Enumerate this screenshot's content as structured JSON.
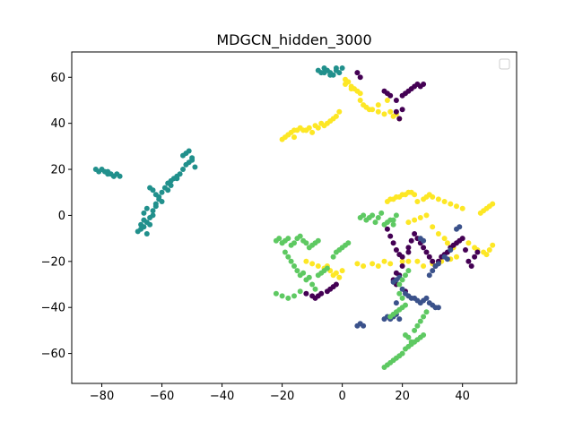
{
  "chart_data": {
    "type": "scatter",
    "title": "MDGCN_hidden_3000",
    "xlabel": "",
    "ylabel": "",
    "xlim": [
      -90,
      58
    ],
    "ylim": [
      -73,
      71
    ],
    "xticks": [
      -80,
      -60,
      -40,
      -20,
      0,
      20,
      40
    ],
    "yticks": [
      -60,
      -40,
      -20,
      0,
      20,
      40,
      60
    ],
    "xtick_labels": [
      "−80",
      "−60",
      "−40",
      "−20",
      "0",
      "20",
      "40"
    ],
    "ytick_labels": [
      "−60",
      "−40",
      "−20",
      "0",
      "20",
      "40",
      "60"
    ],
    "grid": false,
    "legend": {
      "placement": "top-right",
      "entries": []
    },
    "colors": {
      "dark_purple": "#440154",
      "dark_blue": "#3b528b",
      "teal": "#21908c",
      "green": "#5ec962",
      "yellow": "#fde725"
    },
    "series": [
      {
        "color_key": "teal",
        "x": [
          -82,
          -81,
          -80,
          -79,
          -78,
          -77,
          -76,
          -75,
          -74,
          -78,
          -76,
          -68,
          -67,
          -66,
          -65,
          -64,
          -63,
          -62,
          -61,
          -65,
          -64,
          -63,
          -67,
          -66,
          -62,
          -60,
          -59,
          -58,
          -57,
          -56,
          -55,
          -54,
          -53,
          -52,
          -51,
          -50,
          -49,
          -53,
          -52,
          -51,
          -50,
          -64,
          -63,
          -62,
          -61,
          -60,
          -66,
          -65,
          -57,
          -58,
          -55,
          -8,
          -7,
          -6,
          -5,
          -4,
          -3,
          -2,
          -1,
          0,
          -6,
          -4,
          -2
        ],
        "y": [
          20,
          19,
          20,
          19,
          18,
          18,
          17,
          18,
          17,
          19,
          17,
          -7,
          -6,
          -5,
          -3,
          -1,
          2,
          5,
          8,
          -8,
          -4,
          0,
          -4,
          -2,
          4,
          10,
          12,
          14,
          15,
          16,
          17,
          18,
          20,
          22,
          23,
          24,
          21,
          26,
          27,
          28,
          25,
          12,
          11,
          9,
          7,
          6,
          1,
          3,
          13,
          11,
          16,
          63,
          62,
          64,
          63,
          62,
          61,
          63,
          62,
          64,
          62,
          61,
          64
        ]
      },
      {
        "color_key": "yellow",
        "x": [
          -20,
          -19,
          -18,
          -17,
          -16,
          -15,
          -14,
          -13,
          -12,
          -11,
          -10,
          -9,
          -8,
          -7,
          -6,
          -5,
          -4,
          -3,
          -2,
          -1,
          1,
          2,
          3,
          4,
          5,
          6,
          7,
          8,
          10,
          12,
          14,
          16,
          18,
          19,
          -18,
          -16,
          -12,
          1,
          3,
          6,
          9,
          12,
          15,
          17,
          15,
          16,
          17,
          18,
          19,
          20,
          21,
          22,
          23,
          24,
          25,
          27,
          28,
          29,
          30,
          32,
          34,
          36,
          38,
          40,
          46,
          47,
          48,
          49,
          50,
          22,
          24,
          26,
          28,
          30,
          32,
          34,
          35,
          37,
          42,
          44,
          45,
          47,
          48,
          49,
          50,
          38,
          36,
          33,
          30,
          27,
          25,
          -12,
          -10,
          -8,
          -6,
          -5,
          -4,
          -3,
          -2,
          -1,
          0,
          5,
          7,
          10,
          12,
          14,
          16,
          20,
          22
        ],
        "y": [
          33,
          34,
          35,
          36,
          37,
          37,
          38,
          37,
          37,
          38,
          36,
          39,
          38,
          40,
          39,
          40,
          41,
          42,
          43,
          45,
          57,
          58,
          56,
          55,
          54,
          53,
          48,
          47,
          46,
          45,
          44,
          45,
          44,
          42,
          35,
          34,
          37,
          59,
          55,
          50,
          46,
          48,
          50,
          43,
          6,
          7,
          7,
          8,
          8,
          9,
          9,
          10,
          10,
          9,
          6,
          7,
          8,
          9,
          8,
          7,
          6,
          5,
          4,
          3,
          1,
          2,
          3,
          4,
          5,
          -3,
          -2,
          -1,
          0,
          -5,
          -8,
          -10,
          -12,
          -14,
          -12,
          -14,
          -15,
          -16,
          -17,
          -15,
          -13,
          -18,
          -19,
          -20,
          -21,
          -22,
          -20,
          -20,
          -21,
          -22,
          -23,
          -22,
          -24,
          -26,
          -25,
          -27,
          -24,
          -21,
          -22,
          -21,
          -22,
          -20,
          -21,
          -20,
          -20
        ]
      },
      {
        "color_key": "dark_purple",
        "x": [
          5,
          6,
          14,
          15,
          16,
          18,
          20,
          21,
          22,
          23,
          24,
          25,
          26,
          27,
          20,
          19,
          18,
          15,
          16,
          17,
          18,
          19,
          20,
          20,
          19,
          18,
          21,
          22,
          23,
          24,
          25,
          26,
          27,
          28,
          29,
          30,
          31,
          32,
          33,
          34,
          35,
          36,
          37,
          38,
          39,
          40,
          41,
          42,
          43,
          44,
          45,
          -12,
          -10,
          -9,
          -8,
          -7,
          -5,
          -4,
          -3,
          -2,
          22,
          17,
          18
        ],
        "y": [
          62,
          60,
          54,
          53,
          52,
          50,
          52,
          53,
          54,
          55,
          56,
          57,
          56,
          57,
          46,
          42,
          45,
          -6,
          -9,
          -12,
          -15,
          -17,
          -18,
          -22,
          -26,
          -30,
          -33,
          -14,
          -11,
          -8,
          -10,
          -12,
          -14,
          -16,
          -18,
          -20,
          -22,
          -20,
          -18,
          -17,
          -16,
          -14,
          -13,
          -12,
          -11,
          -10,
          -15,
          -20,
          -22,
          -18,
          -16,
          -34,
          -35,
          -36,
          -35,
          -34,
          -33,
          -32,
          -31,
          -30,
          -16,
          -28,
          -25
        ]
      },
      {
        "color_key": "dark_blue",
        "x": [
          5,
          6,
          7,
          14,
          15,
          16,
          17,
          18,
          19,
          17,
          18,
          19,
          20,
          21,
          22,
          23,
          24,
          25,
          26,
          27,
          28,
          29,
          30,
          31,
          32,
          29,
          30,
          31,
          32,
          34,
          35,
          26,
          27,
          38,
          39,
          36,
          18
        ],
        "y": [
          -48,
          -47,
          -48,
          -45,
          -44,
          -45,
          -44,
          -43,
          -45,
          -29,
          -28,
          -27,
          -32,
          -34,
          -35,
          -36,
          -36,
          -37,
          -38,
          -37,
          -36,
          -38,
          -39,
          -40,
          -40,
          -26,
          -24,
          -22,
          -21,
          -18,
          -19,
          -10,
          -11,
          -6,
          -5,
          -15,
          -38
        ]
      },
      {
        "color_key": "green",
        "x": [
          -22,
          -21,
          -20,
          -19,
          -18,
          -17,
          -16,
          -15,
          -14,
          -13,
          -12,
          -11,
          -10,
          -9,
          -8,
          -22,
          -20,
          -18,
          -16,
          -14,
          -20,
          -19,
          -18,
          -17,
          -16,
          -15,
          -14,
          -13,
          -12,
          -11,
          -10,
          -9,
          -8,
          -7,
          -6,
          -5,
          6,
          7,
          8,
          9,
          10,
          11,
          12,
          13,
          14,
          15,
          16,
          17,
          14,
          15,
          16,
          17,
          18,
          19,
          20,
          21,
          22,
          23,
          24,
          25,
          26,
          27,
          24,
          25,
          26,
          27,
          28,
          21,
          22,
          23,
          16,
          17,
          18,
          19,
          20,
          21,
          20,
          19,
          19,
          20,
          21,
          22,
          -3,
          -2,
          -1,
          0,
          1,
          2,
          17,
          18
        ],
        "y": [
          -11,
          -10,
          -12,
          -11,
          -10,
          -13,
          -12,
          -10,
          -9,
          -11,
          -12,
          -14,
          -13,
          -12,
          -11,
          -34,
          -35,
          -36,
          -35,
          -33,
          -12,
          -16,
          -18,
          -20,
          -22,
          -24,
          -26,
          -25,
          -28,
          -27,
          -30,
          -32,
          -26,
          -25,
          -24,
          -23,
          -1,
          0,
          -2,
          -1,
          0,
          -3,
          -1,
          1,
          -4,
          -3,
          -2,
          -4,
          -66,
          -65,
          -64,
          -63,
          -62,
          -61,
          -60,
          -58,
          -57,
          -56,
          -55,
          -54,
          -53,
          -52,
          -50,
          -48,
          -46,
          -44,
          -42,
          -52,
          -53,
          -55,
          -44,
          -43,
          -42,
          -41,
          -40,
          -39,
          -36,
          -34,
          -30,
          -28,
          -26,
          -24,
          -18,
          -16,
          -15,
          -14,
          -13,
          -12,
          -2,
          0
        ]
      }
    ]
  }
}
